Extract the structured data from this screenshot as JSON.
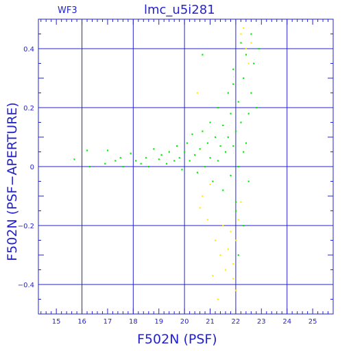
{
  "chart_data": {
    "type": "scatter",
    "panel_label": "WF3",
    "title": "lmc_u5i281",
    "xlabel": "F502N (PSF)",
    "ylabel": "F502N (PSF−APERTURE)",
    "xlim": [
      14.3,
      25.8
    ],
    "ylim": [
      -0.5,
      0.5
    ],
    "grid": true,
    "x_ticks": [
      "15",
      "16",
      "17",
      "18",
      "19",
      "20",
      "21",
      "22",
      "23",
      "24",
      "25"
    ],
    "y_ticks": [
      "0.4",
      "0.2",
      "0",
      "−0.2",
      "−0.4"
    ],
    "series": [
      {
        "color": "#00ee00",
        "points": [
          [
            15.7,
            0.025
          ],
          [
            16.2,
            0.055
          ],
          [
            16.3,
            0.0
          ],
          [
            16.9,
            0.01
          ],
          [
            17.0,
            0.055
          ],
          [
            17.3,
            0.02
          ],
          [
            17.5,
            0.03
          ],
          [
            17.6,
            0.0
          ],
          [
            17.9,
            0.045
          ],
          [
            18.1,
            0.02
          ],
          [
            18.3,
            0.01
          ],
          [
            18.5,
            0.03
          ],
          [
            18.6,
            0.0
          ],
          [
            18.8,
            0.06
          ],
          [
            19.0,
            0.025
          ],
          [
            19.1,
            0.04
          ],
          [
            19.3,
            0.01
          ],
          [
            19.4,
            0.05
          ],
          [
            19.6,
            0.02
          ],
          [
            19.7,
            0.07
          ],
          [
            19.8,
            0.03
          ],
          [
            19.9,
            -0.01
          ],
          [
            20.0,
            0.05
          ],
          [
            20.1,
            0.08
          ],
          [
            20.2,
            0.02
          ],
          [
            20.3,
            0.11
          ],
          [
            20.4,
            0.04
          ],
          [
            20.5,
            -0.02
          ],
          [
            20.6,
            0.06
          ],
          [
            20.7,
            0.12
          ],
          [
            20.7,
            0.38
          ],
          [
            20.8,
            0.0
          ],
          [
            20.9,
            0.08
          ],
          [
            21.0,
            0.15
          ],
          [
            21.0,
            0.03
          ],
          [
            21.1,
            -0.05
          ],
          [
            21.2,
            0.1
          ],
          [
            21.3,
            0.2
          ],
          [
            21.3,
            0.02
          ],
          [
            21.4,
            0.07
          ],
          [
            21.5,
            0.14
          ],
          [
            21.5,
            -0.08
          ],
          [
            21.6,
            0.05
          ],
          [
            21.7,
            0.25
          ],
          [
            21.7,
            0.1
          ],
          [
            21.8,
            -0.03
          ],
          [
            21.8,
            0.18
          ],
          [
            21.9,
            0.07
          ],
          [
            21.9,
            0.33
          ],
          [
            22.0,
            0.12
          ],
          [
            22.0,
            -0.12
          ],
          [
            22.1,
            0.22
          ],
          [
            22.1,
            0.0
          ],
          [
            22.2,
            0.42
          ],
          [
            22.2,
            0.15
          ],
          [
            22.3,
            -0.2
          ],
          [
            22.3,
            0.3
          ],
          [
            22.4,
            0.08
          ],
          [
            22.4,
            0.38
          ],
          [
            22.5,
            0.18
          ],
          [
            22.5,
            -0.05
          ],
          [
            22.6,
            0.25
          ],
          [
            22.6,
            0.45
          ],
          [
            22.7,
            0.35
          ],
          [
            22.8,
            0.2
          ],
          [
            22.9,
            0.4
          ],
          [
            22.1,
            -0.3
          ],
          [
            22.0,
            -0.15
          ],
          [
            21.9,
            0.28
          ],
          [
            22.3,
            0.05
          ]
        ]
      },
      {
        "color": "#ffee00",
        "points": [
          [
            20.6,
            -0.14
          ],
          [
            20.7,
            -0.1
          ],
          [
            20.9,
            -0.18
          ],
          [
            21.0,
            -0.06
          ],
          [
            21.2,
            -0.25
          ],
          [
            21.4,
            -0.3
          ],
          [
            21.5,
            -0.2
          ],
          [
            21.6,
            -0.35
          ],
          [
            21.7,
            -0.28
          ],
          [
            21.8,
            -0.22
          ],
          [
            21.9,
            -0.38
          ],
          [
            22.0,
            -0.25
          ],
          [
            22.0,
            -0.42
          ],
          [
            22.1,
            -0.18
          ],
          [
            22.2,
            0.45
          ],
          [
            22.3,
            0.47
          ],
          [
            22.4,
            0.4
          ],
          [
            22.5,
            0.35
          ],
          [
            21.3,
            -0.45
          ],
          [
            21.9,
            -0.33
          ],
          [
            22.2,
            -0.12
          ],
          [
            22.6,
            0.42
          ],
          [
            20.5,
            0.25
          ],
          [
            21.1,
            -0.37
          ]
        ]
      }
    ]
  }
}
